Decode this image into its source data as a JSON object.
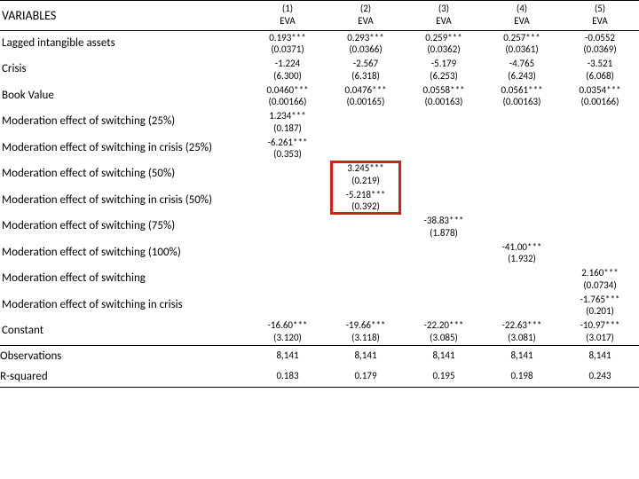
{
  "header": {
    "variables_label": "VARIABLES",
    "cols": [
      {
        "num": "(1)",
        "label": "EVA"
      },
      {
        "num": "(2)",
        "label": "EVA"
      },
      {
        "num": "(3)",
        "label": "EVA"
      },
      {
        "num": "(4)",
        "label": "EVA"
      },
      {
        "num": "(5)",
        "label": "EVA"
      }
    ]
  },
  "rows": [
    {
      "label": "Lagged intangible assets",
      "cells": [
        {
          "c": "0.193***",
          "s": "(0.0371)"
        },
        {
          "c": "0.293***",
          "s": "(0.0366)"
        },
        {
          "c": "0.259***",
          "s": "(0.0362)"
        },
        {
          "c": "0.257***",
          "s": "(0.0361)"
        },
        {
          "c": "-0.0552",
          "s": "(0.0369)"
        }
      ]
    },
    {
      "label": "Crisis",
      "cells": [
        {
          "c": "-1.224",
          "s": "(6.300)"
        },
        {
          "c": "-2.567",
          "s": "(6.318)"
        },
        {
          "c": "-5.179",
          "s": "(6.253)"
        },
        {
          "c": "-4.765",
          "s": "(6.243)"
        },
        {
          "c": "-3.521",
          "s": "(6.068)"
        }
      ]
    },
    {
      "label": "Book Value",
      "cells": [
        {
          "c": "0.0460***",
          "s": "(0.00166)"
        },
        {
          "c": "0.0476***",
          "s": "(0.00165)"
        },
        {
          "c": "0.0558***",
          "s": "(0.00163)"
        },
        {
          "c": "0.0561***",
          "s": "(0.00163)"
        },
        {
          "c": "0.0354***",
          "s": "(0.00166)"
        }
      ]
    },
    {
      "label": "Moderation effect of switching (25%)",
      "cells": [
        {
          "c": "1.234***",
          "s": "(0.187)"
        },
        {
          "c": "",
          "s": ""
        },
        {
          "c": "",
          "s": ""
        },
        {
          "c": "",
          "s": ""
        },
        {
          "c": "",
          "s": ""
        }
      ]
    },
    {
      "label": "Moderation effect of switching in crisis (25%)",
      "cells": [
        {
          "c": "-6.261***",
          "s": "(0.353)"
        },
        {
          "c": "",
          "s": ""
        },
        {
          "c": "",
          "s": ""
        },
        {
          "c": "",
          "s": ""
        },
        {
          "c": "",
          "s": ""
        }
      ]
    },
    {
      "label": "Moderation effect of switching (50%)",
      "cells": [
        {
          "c": "",
          "s": ""
        },
        {
          "c": "3.245***",
          "s": "(0.219)",
          "hl": true
        },
        {
          "c": "",
          "s": ""
        },
        {
          "c": "",
          "s": ""
        },
        {
          "c": "",
          "s": ""
        }
      ]
    },
    {
      "label": "Moderation effect of switching in crisis (50%)",
      "cells": [
        {
          "c": "",
          "s": ""
        },
        {
          "c": "-5.218***",
          "s": "(0.392)",
          "hl": true
        },
        {
          "c": "",
          "s": ""
        },
        {
          "c": "",
          "s": ""
        },
        {
          "c": "",
          "s": ""
        }
      ]
    },
    {
      "label": "Moderation effect of switching (75%)",
      "cells": [
        {
          "c": "",
          "s": ""
        },
        {
          "c": "",
          "s": ""
        },
        {
          "c": "-38.83***",
          "s": "(1.878)"
        },
        {
          "c": "",
          "s": ""
        },
        {
          "c": "",
          "s": ""
        }
      ]
    },
    {
      "label": "Moderation effect of switching (100%)",
      "cells": [
        {
          "c": "",
          "s": ""
        },
        {
          "c": "",
          "s": ""
        },
        {
          "c": "",
          "s": ""
        },
        {
          "c": "-41.00***",
          "s": "(1.932)"
        },
        {
          "c": "",
          "s": ""
        }
      ]
    },
    {
      "label": "Moderation effect of switching",
      "cells": [
        {
          "c": "",
          "s": ""
        },
        {
          "c": "",
          "s": ""
        },
        {
          "c": "",
          "s": ""
        },
        {
          "c": "",
          "s": ""
        },
        {
          "c": "2.160***",
          "s": "(0.0734)"
        }
      ]
    },
    {
      "label": "Moderation effect of switching in crisis",
      "cells": [
        {
          "c": "",
          "s": ""
        },
        {
          "c": "",
          "s": ""
        },
        {
          "c": "",
          "s": ""
        },
        {
          "c": "",
          "s": ""
        },
        {
          "c": "-1.765***",
          "s": "(0.201)"
        }
      ]
    },
    {
      "label": "Constant",
      "cells": [
        {
          "c": "-16.60***",
          "s": "(3.120)"
        },
        {
          "c": "-19.66***",
          "s": "(3.118)"
        },
        {
          "c": "-22.20***",
          "s": "(3.085)"
        },
        {
          "c": "-22.63***",
          "s": "(3.081)"
        },
        {
          "c": "-10.97***",
          "s": "(3.017)"
        }
      ]
    }
  ],
  "stats": [
    {
      "label": "Observations",
      "vals": [
        "8,141",
        "8,141",
        "8,141",
        "8,141",
        "8,141"
      ]
    },
    {
      "label": "R-squared",
      "vals": [
        "0.183",
        "0.179",
        "0.195",
        "0.198",
        "0.243"
      ]
    }
  ],
  "highlight_box": {
    "row_start": 5,
    "row_end": 6,
    "col": 1,
    "border_color": "#d62012"
  }
}
